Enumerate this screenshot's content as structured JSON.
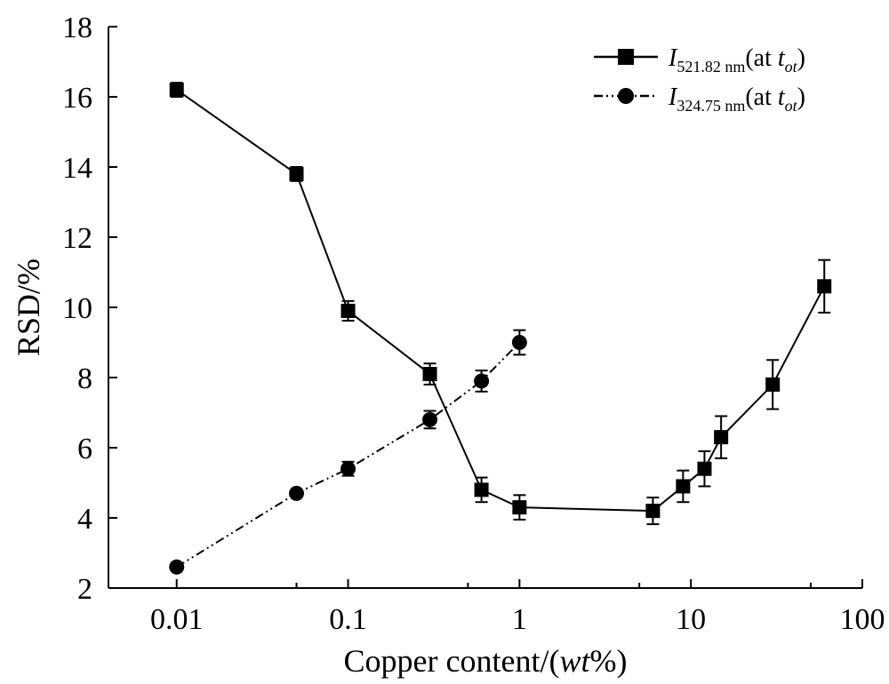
{
  "chart_data": {
    "type": "line",
    "xlabel_main": "Copper content/(",
    "xlabel_italic": "wt",
    "xlabel_tail": "%)",
    "ylabel": "RSD/%",
    "x_scale": "log",
    "xlim": [
      0.004,
      100
    ],
    "ylim": [
      2,
      18
    ],
    "x_ticks": [
      0.01,
      0.1,
      1,
      10,
      100
    ],
    "x_tick_labels": [
      "0.01",
      "0.1",
      "1",
      "10",
      "100"
    ],
    "y_ticks": [
      2,
      4,
      6,
      8,
      10,
      12,
      14,
      16,
      18
    ],
    "y_tick_labels": [
      "2",
      "4",
      "6",
      "8",
      "10",
      "12",
      "14",
      "16",
      "18"
    ],
    "grid": false,
    "legend_position": "top-right",
    "series": [
      {
        "name_italic": "I",
        "name_sub": "521.82 nm",
        "name_paren": "(at ",
        "name_t": "t",
        "name_tsub": "ot",
        "name_close": ")",
        "marker": "square",
        "line_style": "solid",
        "x": [
          0.01,
          0.05,
          0.1,
          0.3,
          0.6,
          1,
          6,
          9,
          12,
          15,
          30,
          60
        ],
        "y": [
          16.2,
          13.8,
          9.9,
          8.1,
          4.8,
          4.3,
          4.2,
          4.9,
          5.4,
          6.3,
          7.8,
          10.6
        ],
        "err": [
          0.2,
          0.2,
          0.28,
          0.3,
          0.35,
          0.35,
          0.38,
          0.45,
          0.5,
          0.6,
          0.7,
          0.75
        ]
      },
      {
        "name_italic": "I",
        "name_sub": "324.75 nm",
        "name_paren": "(at ",
        "name_t": "t",
        "name_tsub": "ot",
        "name_close": ")",
        "marker": "circle",
        "line_style": "dash-dot-dot",
        "x": [
          0.01,
          0.05,
          0.1,
          0.3,
          0.6,
          1
        ],
        "y": [
          2.6,
          4.7,
          5.4,
          6.8,
          7.9,
          9.0
        ],
        "err": [
          0.0,
          0.1,
          0.2,
          0.25,
          0.3,
          0.35
        ]
      }
    ]
  }
}
